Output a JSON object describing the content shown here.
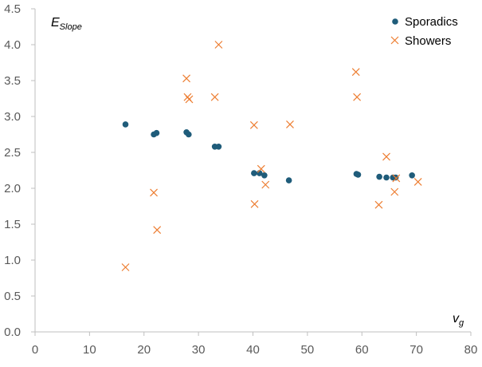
{
  "chart_data": {
    "type": "scatter",
    "title": "",
    "xlabel": {
      "main": "v",
      "sub": "g"
    },
    "ylabel": {
      "main": "E",
      "sub": "Slope"
    },
    "xlim": [
      0,
      80
    ],
    "ylim": [
      0,
      4.5
    ],
    "xticks": [
      "0",
      "10",
      "20",
      "30",
      "40",
      "50",
      "60",
      "70",
      "80"
    ],
    "yticks": [
      "0.0",
      "0.5",
      "1.0",
      "1.5",
      "2.0",
      "2.5",
      "3.0",
      "3.5",
      "4.0",
      "4.5"
    ],
    "grid": false,
    "legend_position": "top-right",
    "series": [
      {
        "name": "Sporadics",
        "marker": "circle",
        "color": "#1F5C7A",
        "points": [
          [
            16.6,
            2.89
          ],
          [
            21.8,
            2.75
          ],
          [
            22.3,
            2.77
          ],
          [
            27.8,
            2.78
          ],
          [
            28.2,
            2.75
          ],
          [
            33.0,
            2.58
          ],
          [
            33.7,
            2.58
          ],
          [
            40.2,
            2.21
          ],
          [
            41.2,
            2.21
          ],
          [
            42.1,
            2.18
          ],
          [
            46.6,
            2.11
          ],
          [
            59.0,
            2.2
          ],
          [
            59.3,
            2.19
          ],
          [
            63.2,
            2.16
          ],
          [
            64.5,
            2.15
          ],
          [
            65.7,
            2.15
          ],
          [
            66.2,
            2.15
          ],
          [
            69.2,
            2.18
          ]
        ]
      },
      {
        "name": "Showers",
        "marker": "x",
        "color": "#ED7D31",
        "points": [
          [
            16.6,
            0.9
          ],
          [
            21.8,
            1.94
          ],
          [
            22.4,
            1.42
          ],
          [
            27.8,
            3.53
          ],
          [
            28.0,
            3.27
          ],
          [
            28.3,
            3.24
          ],
          [
            33.0,
            3.27
          ],
          [
            33.7,
            4.0
          ],
          [
            40.2,
            2.88
          ],
          [
            40.3,
            1.78
          ],
          [
            41.5,
            2.27
          ],
          [
            42.3,
            2.05
          ],
          [
            46.8,
            2.89
          ],
          [
            58.9,
            3.62
          ],
          [
            59.1,
            3.27
          ],
          [
            63.1,
            1.77
          ],
          [
            64.5,
            2.44
          ],
          [
            66.0,
            1.95
          ],
          [
            66.3,
            2.14
          ],
          [
            70.3,
            2.09
          ]
        ]
      }
    ]
  }
}
